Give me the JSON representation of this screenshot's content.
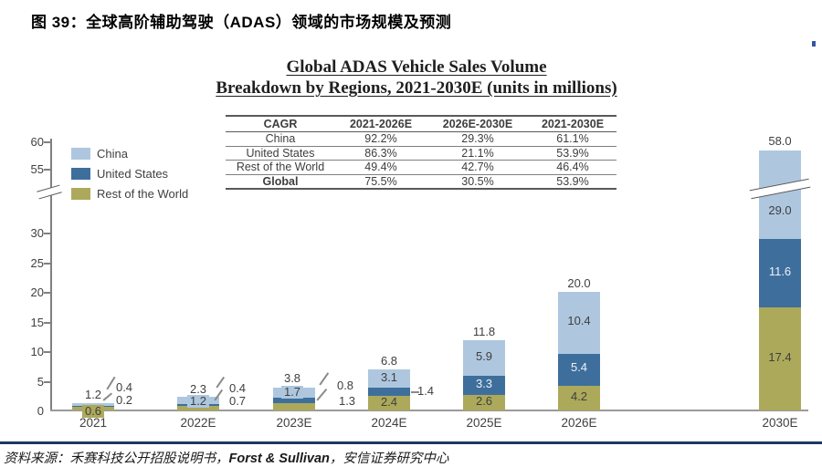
{
  "doc": {
    "title": "图 39：全球高阶辅助驾驶（ADAS）领域的市场规模及预测"
  },
  "chart": {
    "title_line1": "Global ADAS Vehicle Sales Volume",
    "title_line2": "Breakdown by Regions, 2021-2030E (units in millions)"
  },
  "cagr_table": {
    "headers": [
      "CAGR",
      "2021-2026E",
      "2026E-2030E",
      "2021-2030E"
    ],
    "rows": [
      {
        "label": "China",
        "values": [
          "92.2%",
          "29.3%",
          "61.1%"
        ]
      },
      {
        "label": "United States",
        "values": [
          "86.3%",
          "21.1%",
          "53.9%"
        ]
      },
      {
        "label": "Rest of the World",
        "values": [
          "49.4%",
          "42.7%",
          "46.4%"
        ]
      },
      {
        "label": "Global",
        "values": [
          "75.5%",
          "30.5%",
          "53.9%"
        ]
      }
    ]
  },
  "axis": {
    "y_ticks": [
      "60",
      "55",
      "30",
      "25",
      "20",
      "15",
      "10",
      "5",
      "0"
    ]
  },
  "chart_data": {
    "type": "bar",
    "stacked": true,
    "title": "Global ADAS Vehicle Sales Volume Breakdown by Regions, 2021-2030E (units in millions)",
    "categories": [
      "2021",
      "2022E",
      "2023E",
      "2024E",
      "2025E",
      "2026E",
      "2030E"
    ],
    "series": [
      {
        "name": "China",
        "color": "#AEC7DF",
        "values": [
          0.4,
          1.2,
          1.7,
          3.1,
          5.9,
          10.4,
          29.0
        ],
        "labels": [
          "0.4",
          "1.2",
          "1.7",
          "3.1",
          "5.9",
          "10.4",
          "29.0"
        ]
      },
      {
        "name": "United States",
        "color": "#3E6F9C",
        "values": [
          0.2,
          0.4,
          0.8,
          1.4,
          3.3,
          5.4,
          11.6
        ],
        "labels": [
          "0.2",
          "0.4",
          "0.8",
          "1.4",
          "3.3",
          "5.4",
          "11.6"
        ]
      },
      {
        "name": "Rest of the World",
        "color": "#ACA95B",
        "values": [
          0.6,
          0.7,
          1.3,
          2.4,
          2.6,
          4.2,
          17.4
        ],
        "labels": [
          "0.6",
          "0.7",
          "1.3",
          "2.4",
          "2.6",
          "4.2",
          "17.4"
        ]
      }
    ],
    "totals": [
      1.2,
      2.3,
      3.8,
      6.8,
      11.8,
      20.0,
      58.0
    ],
    "total_labels": [
      "1.2",
      "2.3",
      "3.8",
      "6.8",
      "11.8",
      "20.0",
      "58.0"
    ],
    "y_axis_break_between": [
      30,
      55
    ],
    "grid": false,
    "legend_position": "upper-left"
  },
  "source": {
    "prefix": "资料来源：禾赛科技公开招股说明书，",
    "emphasis": "Forst & Sullivan",
    "suffix": "，安信证券研究中心"
  },
  "colors": {
    "navy_rule": "#1F3864",
    "axis": "#808080",
    "label_text": "#3F3F3F"
  }
}
